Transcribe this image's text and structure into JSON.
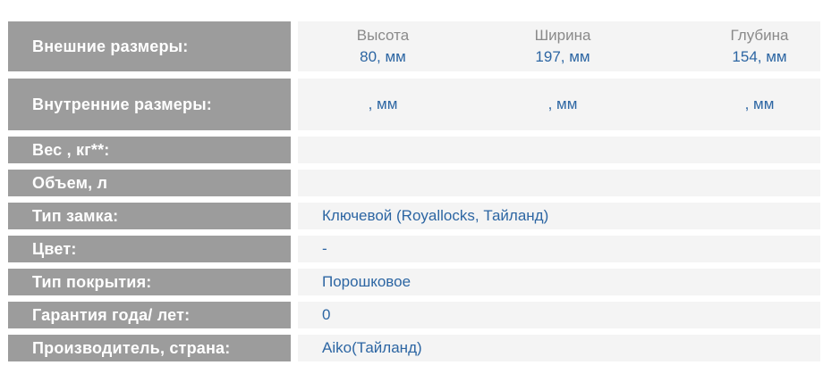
{
  "colors": {
    "label_background": "#9c9c9c",
    "label_text": "#ffffff",
    "value_background": "#f4f4f4",
    "dimension_header_text": "#8a8a8a",
    "value_text": "#2d66a3"
  },
  "table": {
    "dim_headers": [
      "Высота",
      "Ширина",
      "Глубина"
    ],
    "outer": {
      "label": "Внешние размеры:",
      "values": [
        "80, мм",
        "197, мм",
        "154, мм"
      ]
    },
    "inner": {
      "label": "Внутренние размеры:",
      "values": [
        ", мм",
        ", мм",
        ", мм"
      ]
    },
    "simple_rows": [
      {
        "label": "Вес , кг**:",
        "value": ""
      },
      {
        "label": "Объем, л",
        "value": ""
      },
      {
        "label": "Тип замка:",
        "value": "Ключевой (Royallocks, Тайланд)"
      },
      {
        "label": "Цвет:",
        "value": "-"
      },
      {
        "label": "Тип покрытия:",
        "value": "Порошковое"
      },
      {
        "label": "Гарантия года/ лет:",
        "value": "0"
      },
      {
        "label": "Производитель, страна:",
        "value": "Aiko(Тайланд)"
      }
    ]
  }
}
